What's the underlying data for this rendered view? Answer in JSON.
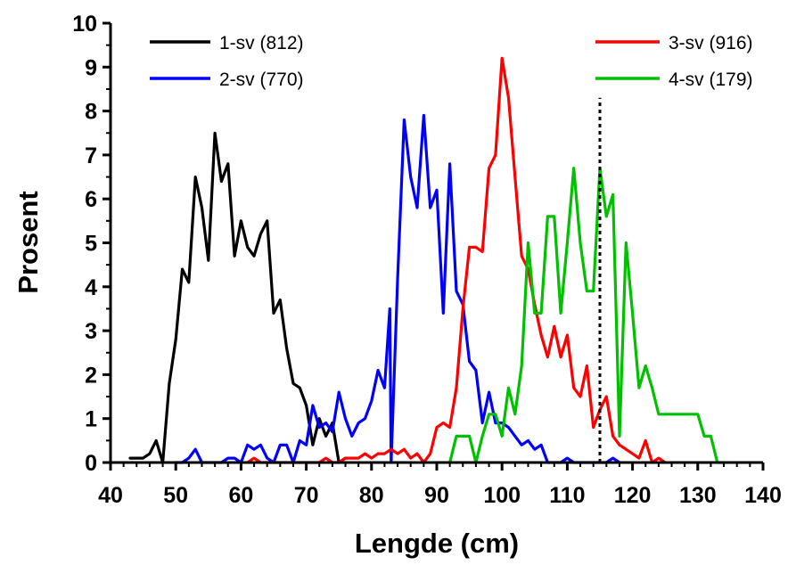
{
  "chart_data": {
    "type": "line",
    "title": "",
    "xlabel": "Lengde (cm)",
    "ylabel": "Prosent",
    "xlim": [
      40,
      140
    ],
    "ylim": [
      0,
      10
    ],
    "xticks": [
      40,
      50,
      60,
      70,
      80,
      90,
      100,
      110,
      120,
      130,
      140
    ],
    "yticks": [
      0,
      1,
      2,
      3,
      4,
      5,
      6,
      7,
      8,
      9,
      10
    ],
    "grid": false,
    "reference_line": {
      "x": 115,
      "y_from": 0,
      "y_to": 8.3,
      "style": "dotted",
      "color": "#000000"
    },
    "series": [
      {
        "name": "1-sv (812)",
        "color": "#000000",
        "x": [
          43,
          44,
          45,
          46,
          47,
          48,
          49,
          50,
          51,
          52,
          53,
          54,
          55,
          56,
          57,
          58,
          59,
          60,
          61,
          62,
          63,
          64,
          65,
          66,
          67,
          68,
          69,
          70,
          71,
          72,
          73,
          74,
          75,
          76
        ],
        "y": [
          0.1,
          0.1,
          0.1,
          0.2,
          0.5,
          0,
          1.8,
          2.8,
          4.4,
          4.1,
          6.5,
          5.8,
          4.6,
          7.5,
          6.4,
          6.8,
          4.7,
          5.5,
          4.9,
          4.7,
          5.2,
          5.5,
          3.4,
          3.7,
          2.6,
          1.8,
          1.7,
          1.3,
          0.4,
          1,
          0.6,
          0.9,
          0,
          0.1
        ]
      },
      {
        "name": "2-sv (770)",
        "color": "#0000ff",
        "x": [
          50,
          51,
          52,
          53,
          54,
          55,
          56,
          57,
          58,
          59,
          60,
          61,
          62,
          63,
          64,
          65,
          66,
          67,
          68,
          69,
          70,
          71,
          72,
          73,
          74,
          75,
          76,
          77,
          78,
          79,
          80,
          81,
          82,
          82.8,
          83,
          84,
          85,
          86,
          87,
          88,
          89,
          90,
          91,
          92,
          93,
          94,
          95,
          96,
          97,
          98,
          99,
          100,
          101,
          102,
          103,
          104,
          105,
          106,
          107,
          108,
          109,
          110,
          111,
          112,
          113,
          114,
          115,
          116,
          117,
          118
        ],
        "y": [
          0,
          0,
          0.1,
          0.3,
          0,
          0,
          0,
          0,
          0.1,
          0.1,
          0,
          0.4,
          0.3,
          0.4,
          0.1,
          0,
          0.4,
          0.4,
          0,
          0.5,
          0.4,
          1.3,
          0.8,
          0.9,
          0.7,
          1.6,
          1,
          0.6,
          0.9,
          1,
          1.4,
          2.1,
          1.7,
          3.5,
          0,
          4.2,
          7.8,
          6.5,
          5.8,
          7.9,
          5.8,
          6.2,
          3.4,
          6.8,
          3.9,
          3.6,
          2.3,
          2.1,
          0.9,
          1.6,
          0.9,
          0.9,
          0.8,
          0.6,
          0.4,
          0.5,
          0.3,
          0.4,
          0,
          0,
          0,
          0.1,
          0,
          0,
          0,
          0,
          0,
          0,
          0.1,
          0
        ]
      },
      {
        "name": "3-sv (916)",
        "color": "#ff0000",
        "x": [
          61,
          62,
          63,
          64,
          65,
          66,
          67,
          68,
          69,
          70,
          71,
          72,
          73,
          74,
          75,
          76,
          77,
          78,
          79,
          80,
          81,
          82,
          83,
          84,
          85,
          86,
          87,
          88,
          89,
          90,
          91,
          92,
          93,
          94,
          95,
          96,
          97,
          98,
          99,
          100,
          101,
          102,
          103,
          104,
          105,
          106,
          107,
          108,
          109,
          110,
          111,
          112,
          113,
          114,
          115,
          116,
          117,
          118,
          119,
          120,
          121,
          122,
          123,
          124,
          125
        ],
        "y": [
          0,
          0.1,
          0,
          0,
          0,
          0,
          0,
          0,
          0,
          0,
          0,
          0,
          0.1,
          0,
          0,
          0.1,
          0.1,
          0.1,
          0.2,
          0.1,
          0.2,
          0.2,
          0.3,
          0.2,
          0.3,
          0.1,
          0.2,
          0,
          0.2,
          0.8,
          0.9,
          0.8,
          1.7,
          3.5,
          4.9,
          4.9,
          4.8,
          6.7,
          7,
          9.2,
          8.3,
          6.5,
          4.7,
          4.4,
          3.6,
          2.9,
          2.4,
          3.1,
          2.4,
          2.9,
          1.7,
          1.5,
          2.2,
          0.8,
          1.2,
          1.5,
          0.6,
          0.4,
          0.3,
          0.2,
          0.1,
          0.5,
          0,
          0.1,
          0
        ]
      },
      {
        "name": "4-sv (179)",
        "color": "#00c000",
        "x": [
          92,
          93,
          94,
          95,
          96,
          97,
          98,
          99,
          100,
          101,
          102,
          103,
          104,
          105,
          106,
          107,
          108,
          109,
          110,
          111,
          112,
          113,
          114,
          115,
          116,
          117,
          118,
          119,
          120,
          121,
          122,
          123,
          124,
          125,
          126,
          127,
          128,
          129,
          130,
          131,
          132,
          133,
          134
        ],
        "y": [
          0,
          0.6,
          0.6,
          0.6,
          0,
          0.6,
          1.1,
          1.1,
          0.6,
          1.7,
          1.1,
          2.2,
          5,
          3.4,
          3.4,
          5.6,
          5.6,
          3.4,
          5,
          6.7,
          5,
          3.9,
          3.9,
          6.7,
          5.6,
          6.1,
          0.6,
          5,
          3.4,
          1.7,
          2.2,
          1.7,
          1.1,
          1.1,
          1.1,
          1.1,
          1.1,
          1.1,
          1.1,
          0.6,
          0.6,
          0,
          0
        ]
      }
    ]
  }
}
